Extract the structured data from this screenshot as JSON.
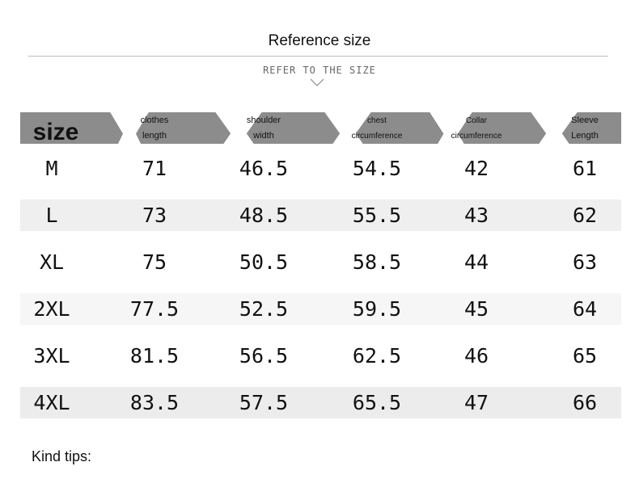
{
  "header": {
    "title": "Reference size",
    "subtitle": "REFER TO THE SIZE"
  },
  "table": {
    "columns": [
      "size",
      "clothes length",
      "shoulder width",
      "chest circumference",
      "Collar circumference",
      "Sleeve Length"
    ],
    "rows": [
      [
        "M",
        "71",
        "46.5",
        "54.5",
        "42",
        "61"
      ],
      [
        "L",
        "73",
        "48.5",
        "55.5",
        "43",
        "62"
      ],
      [
        "XL",
        "75",
        "50.5",
        "58.5",
        "44",
        "63"
      ],
      [
        "2XL",
        "77.5",
        "52.5",
        "59.5",
        "45",
        "64"
      ],
      [
        "3XL",
        "81.5",
        "56.5",
        "62.5",
        "46",
        "65"
      ],
      [
        "4XL",
        "83.5",
        "57.5",
        "65.5",
        "47",
        "66"
      ]
    ]
  },
  "footer": {
    "tips": "Kind tips:"
  }
}
